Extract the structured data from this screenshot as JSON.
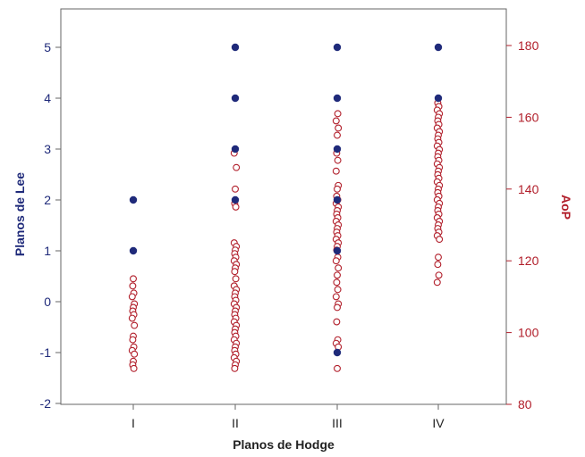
{
  "chart_data": {
    "type": "scatter",
    "title": "",
    "xlabel": "Planos de Hodge",
    "ylabel_left": "Planos de Lee",
    "ylabel_right": "AoP",
    "categories": [
      "I",
      "II",
      "III",
      "IV"
    ],
    "ylim_left": [
      -2,
      5.5
    ],
    "yticks_left": [
      -2,
      -1,
      0,
      1,
      2,
      3,
      4,
      5
    ],
    "ylim_right": [
      80,
      190
    ],
    "yticks_right": [
      80,
      100,
      120,
      140,
      160,
      180
    ],
    "grid": false,
    "legend": "none",
    "colors": {
      "lee": "#1f2a7a",
      "aop": "#b11e2a",
      "axis": "#555555"
    },
    "series": [
      {
        "axis": "left",
        "marker": "filled-circle",
        "points": [
          [
            "I",
            2
          ],
          [
            "I",
            1
          ],
          [
            "II",
            5
          ],
          [
            "II",
            4
          ],
          [
            "II",
            3
          ],
          [
            "II",
            2
          ],
          [
            "III",
            5
          ],
          [
            "III",
            4
          ],
          [
            "III",
            3
          ],
          [
            "III",
            2
          ],
          [
            "III",
            1
          ],
          [
            "III",
            -1
          ],
          [
            "IV",
            5
          ],
          [
            "IV",
            4
          ]
        ]
      },
      {
        "axis": "right",
        "marker": "hollow-circle",
        "points": [
          [
            "I",
            115
          ],
          [
            "I",
            113
          ],
          [
            "I",
            111
          ],
          [
            "I",
            110
          ],
          [
            "I",
            108
          ],
          [
            "I",
            107
          ],
          [
            "I",
            106
          ],
          [
            "I",
            105
          ],
          [
            "I",
            104
          ],
          [
            "I",
            102
          ],
          [
            "I",
            99
          ],
          [
            "I",
            98
          ],
          [
            "I",
            96
          ],
          [
            "I",
            95
          ],
          [
            "I",
            94
          ],
          [
            "I",
            92
          ],
          [
            "I",
            91
          ],
          [
            "I",
            90
          ],
          [
            "II",
            150
          ],
          [
            "II",
            146
          ],
          [
            "II",
            140
          ],
          [
            "II",
            136
          ],
          [
            "II",
            135
          ],
          [
            "II",
            125
          ],
          [
            "II",
            124
          ],
          [
            "II",
            123
          ],
          [
            "II",
            122
          ],
          [
            "II",
            121
          ],
          [
            "II",
            120
          ],
          [
            "II",
            119
          ],
          [
            "II",
            118
          ],
          [
            "II",
            117
          ],
          [
            "II",
            115
          ],
          [
            "II",
            113
          ],
          [
            "II",
            112
          ],
          [
            "II",
            111
          ],
          [
            "II",
            110
          ],
          [
            "II",
            109
          ],
          [
            "II",
            108
          ],
          [
            "II",
            107
          ],
          [
            "II",
            106
          ],
          [
            "II",
            105
          ],
          [
            "II",
            104
          ],
          [
            "II",
            103
          ],
          [
            "II",
            102
          ],
          [
            "II",
            101
          ],
          [
            "II",
            100
          ],
          [
            "II",
            99
          ],
          [
            "II",
            98
          ],
          [
            "II",
            97
          ],
          [
            "II",
            96
          ],
          [
            "II",
            95
          ],
          [
            "II",
            94
          ],
          [
            "II",
            93
          ],
          [
            "II",
            92
          ],
          [
            "II",
            91
          ],
          [
            "II",
            90
          ],
          [
            "III",
            161
          ],
          [
            "III",
            159
          ],
          [
            "III",
            157
          ],
          [
            "III",
            155
          ],
          [
            "III",
            150
          ],
          [
            "III",
            148
          ],
          [
            "III",
            145
          ],
          [
            "III",
            141
          ],
          [
            "III",
            140
          ],
          [
            "III",
            138
          ],
          [
            "III",
            137
          ],
          [
            "III",
            136
          ],
          [
            "III",
            135
          ],
          [
            "III",
            134
          ],
          [
            "III",
            133
          ],
          [
            "III",
            132
          ],
          [
            "III",
            131
          ],
          [
            "III",
            130
          ],
          [
            "III",
            129
          ],
          [
            "III",
            128
          ],
          [
            "III",
            127
          ],
          [
            "III",
            126
          ],
          [
            "III",
            125
          ],
          [
            "III",
            124
          ],
          [
            "III",
            123
          ],
          [
            "III",
            121
          ],
          [
            "III",
            120
          ],
          [
            "III",
            118
          ],
          [
            "III",
            116
          ],
          [
            "III",
            114
          ],
          [
            "III",
            112
          ],
          [
            "III",
            110
          ],
          [
            "III",
            108
          ],
          [
            "III",
            107
          ],
          [
            "III",
            103
          ],
          [
            "III",
            98
          ],
          [
            "III",
            97
          ],
          [
            "III",
            96
          ],
          [
            "III",
            90
          ],
          [
            "IV",
            164
          ],
          [
            "IV",
            163
          ],
          [
            "IV",
            162
          ],
          [
            "IV",
            161
          ],
          [
            "IV",
            160
          ],
          [
            "IV",
            159
          ],
          [
            "IV",
            158
          ],
          [
            "IV",
            157
          ],
          [
            "IV",
            156
          ],
          [
            "IV",
            155
          ],
          [
            "IV",
            154
          ],
          [
            "IV",
            153
          ],
          [
            "IV",
            152
          ],
          [
            "IV",
            151
          ],
          [
            "IV",
            150
          ],
          [
            "IV",
            149
          ],
          [
            "IV",
            148
          ],
          [
            "IV",
            147
          ],
          [
            "IV",
            146
          ],
          [
            "IV",
            145
          ],
          [
            "IV",
            144
          ],
          [
            "IV",
            143
          ],
          [
            "IV",
            142
          ],
          [
            "IV",
            141
          ],
          [
            "IV",
            140
          ],
          [
            "IV",
            139
          ],
          [
            "IV",
            138
          ],
          [
            "IV",
            137
          ],
          [
            "IV",
            136
          ],
          [
            "IV",
            135
          ],
          [
            "IV",
            134
          ],
          [
            "IV",
            133
          ],
          [
            "IV",
            132
          ],
          [
            "IV",
            131
          ],
          [
            "IV",
            130
          ],
          [
            "IV",
            129
          ],
          [
            "IV",
            128
          ],
          [
            "IV",
            127
          ],
          [
            "IV",
            126
          ],
          [
            "IV",
            121
          ],
          [
            "IV",
            119
          ],
          [
            "IV",
            116
          ],
          [
            "IV",
            114
          ]
        ]
      }
    ]
  }
}
